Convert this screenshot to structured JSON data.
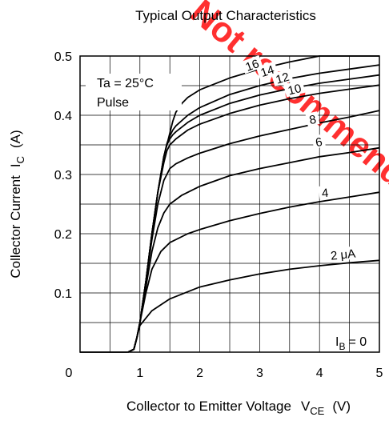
{
  "chart_data": {
    "type": "line",
    "title": "Typical Output Characteristics",
    "xlabel": "Collector to Emitter Voltage",
    "xlabel_symbol": "V",
    "xlabel_sub": "CE",
    "xlabel_unit": "(V)",
    "ylabel": "Collector Current",
    "ylabel_symbol": "I",
    "ylabel_sub": "C",
    "ylabel_unit": "(A)",
    "xlim": [
      0,
      5
    ],
    "ylim": [
      0,
      0.5
    ],
    "xticks": [
      "0",
      "1",
      "2",
      "3",
      "4",
      "5"
    ],
    "yticks": [
      "0.1",
      "0.2",
      "0.3",
      "0.4",
      "0.5"
    ],
    "grid": true,
    "annotations": {
      "temperature": "Ta = 25°C",
      "mode": "Pulse",
      "ib0_label": "= 0",
      "ib0_symbol": "I",
      "ib0_sub": "B"
    },
    "series": [
      {
        "name": "2 μA",
        "label": "2 μA",
        "x": [
          0.8,
          0.9,
          0.95,
          1,
          1.2,
          1.5,
          2,
          2.5,
          3,
          3.5,
          4,
          4.5,
          5
        ],
        "y": [
          0,
          0.005,
          0.025,
          0.045,
          0.07,
          0.09,
          0.11,
          0.122,
          0.132,
          0.14,
          0.146,
          0.151,
          0.155
        ]
      },
      {
        "name": "4",
        "label": "4",
        "x": [
          0.8,
          0.9,
          0.95,
          1,
          1.1,
          1.2,
          1.35,
          1.5,
          1.8,
          2,
          2.5,
          3,
          3.5,
          4,
          4.5,
          5
        ],
        "y": [
          0,
          0.005,
          0.025,
          0.05,
          0.1,
          0.14,
          0.17,
          0.185,
          0.2,
          0.207,
          0.222,
          0.234,
          0.245,
          0.254,
          0.262,
          0.27
        ]
      },
      {
        "name": "6",
        "label": "6",
        "x": [
          0.8,
          0.9,
          0.95,
          1,
          1.1,
          1.2,
          1.3,
          1.4,
          1.5,
          1.7,
          2,
          2.5,
          3,
          3.5,
          4,
          4.5,
          5
        ],
        "y": [
          0,
          0.005,
          0.025,
          0.05,
          0.11,
          0.17,
          0.21,
          0.235,
          0.25,
          0.265,
          0.28,
          0.298,
          0.31,
          0.32,
          0.33,
          0.337,
          0.345
        ]
      },
      {
        "name": "8",
        "label": "8",
        "x": [
          0.8,
          0.9,
          0.95,
          1,
          1.1,
          1.2,
          1.3,
          1.4,
          1.5,
          1.6,
          1.8,
          2,
          2.5,
          3,
          3.5,
          4,
          4.5,
          5
        ],
        "y": [
          0,
          0.005,
          0.025,
          0.05,
          0.12,
          0.19,
          0.25,
          0.29,
          0.31,
          0.318,
          0.328,
          0.336,
          0.352,
          0.365,
          0.376,
          0.387,
          0.397,
          0.408
        ]
      },
      {
        "name": "10",
        "label": "10",
        "x": [
          0.8,
          0.9,
          0.95,
          1,
          1.1,
          1.2,
          1.3,
          1.4,
          1.45,
          1.5,
          1.6,
          1.8,
          2,
          2.5,
          3,
          3.5,
          4,
          4.5,
          5
        ],
        "y": [
          0,
          0.005,
          0.025,
          0.05,
          0.12,
          0.2,
          0.27,
          0.32,
          0.34,
          0.35,
          0.36,
          0.375,
          0.385,
          0.403,
          0.417,
          0.428,
          0.437,
          0.444,
          0.451
        ]
      },
      {
        "name": "12",
        "label": "12",
        "x": [
          0.8,
          0.9,
          0.95,
          1,
          1.1,
          1.2,
          1.3,
          1.4,
          1.45,
          1.5,
          1.55,
          1.6,
          1.8,
          2,
          2.5,
          3,
          3.5,
          4,
          4.5,
          5
        ],
        "y": [
          0,
          0.005,
          0.025,
          0.05,
          0.12,
          0.2,
          0.27,
          0.33,
          0.35,
          0.36,
          0.367,
          0.372,
          0.388,
          0.4,
          0.42,
          0.434,
          0.445,
          0.454,
          0.461,
          0.468
        ]
      },
      {
        "name": "14",
        "label": "14",
        "x": [
          0.8,
          0.9,
          0.95,
          1,
          1.1,
          1.2,
          1.3,
          1.4,
          1.45,
          1.5,
          1.55,
          1.6,
          1.8,
          2,
          2.5,
          3,
          3.5,
          4,
          4.5,
          5
        ],
        "y": [
          0,
          0.005,
          0.025,
          0.05,
          0.12,
          0.2,
          0.27,
          0.33,
          0.352,
          0.365,
          0.375,
          0.382,
          0.4,
          0.413,
          0.435,
          0.45,
          0.462,
          0.471,
          0.478,
          0.485
        ]
      },
      {
        "name": "16",
        "label": "16",
        "x": [
          0.8,
          0.9,
          0.95,
          1,
          1.1,
          1.2,
          1.3,
          1.4,
          1.5,
          1.55,
          1.6,
          1.7,
          1.8,
          2,
          2.5,
          3,
          3.5,
          4,
          4.5,
          5
        ],
        "y": [
          0,
          0.005,
          0.025,
          0.05,
          0.12,
          0.2,
          0.27,
          0.33,
          0.37,
          0.39,
          0.405,
          0.42,
          0.43,
          0.443,
          0.463,
          0.478,
          0.49,
          0.5,
          0.5,
          0.5
        ]
      },
      {
        "name": "I_B = 0",
        "label": "",
        "x": [
          0,
          0.8
        ],
        "y": [
          0,
          0
        ]
      }
    ],
    "watermark": "Not recommended for new design"
  }
}
